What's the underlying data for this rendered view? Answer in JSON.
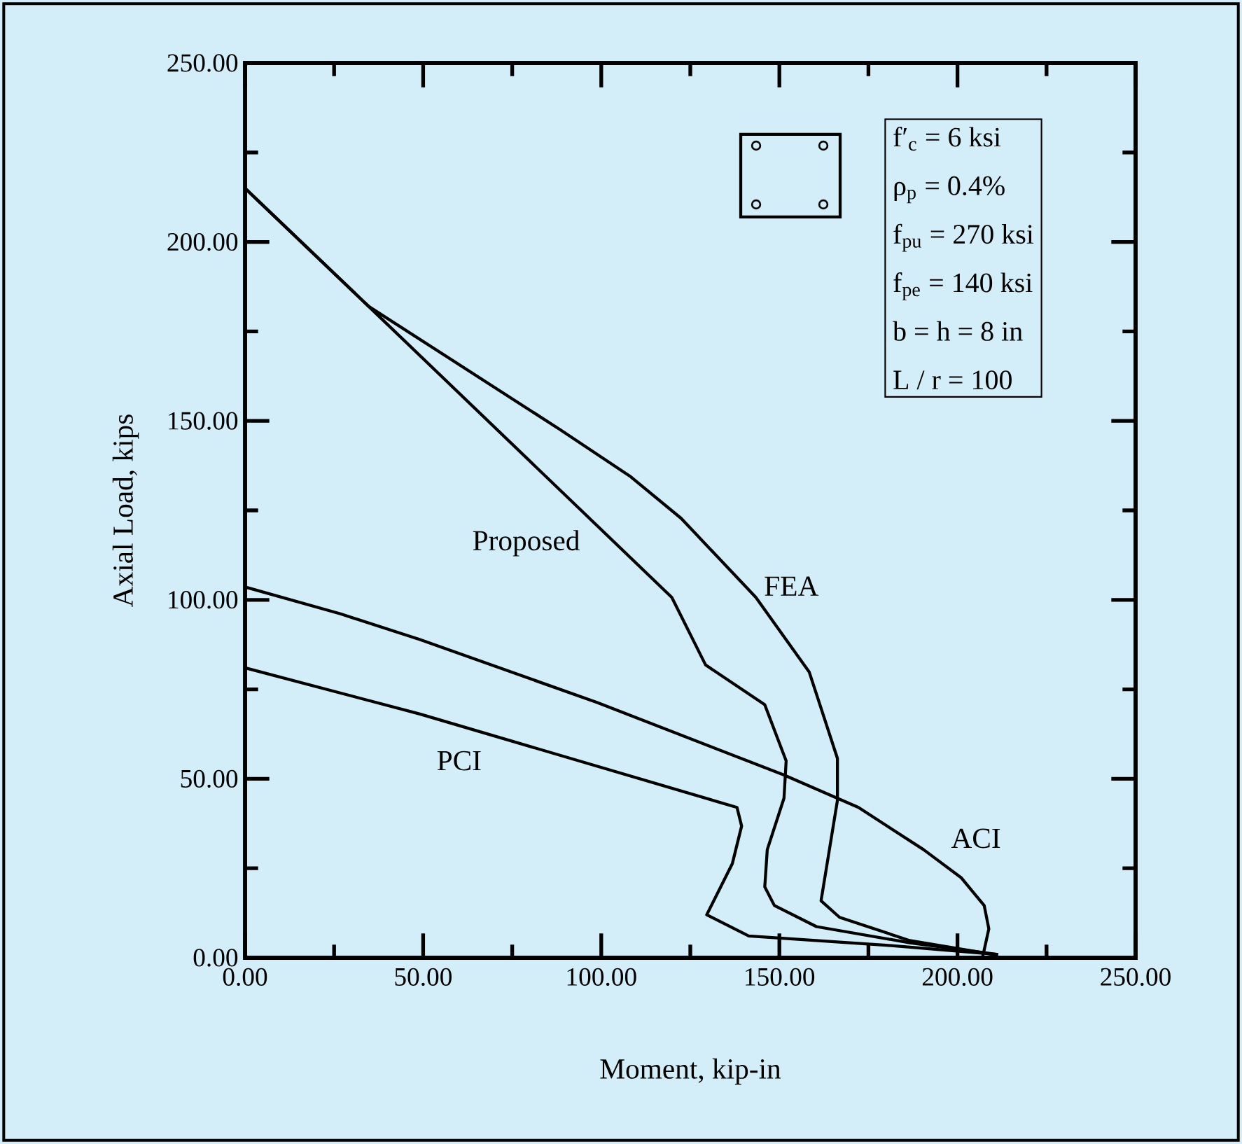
{
  "chart_data": {
    "type": "line",
    "xlabel": "Moment, kip-in",
    "ylabel": "Axial Load, kips",
    "xlim": [
      0,
      250
    ],
    "ylim": [
      0,
      250
    ],
    "xticks": [
      {
        "value": 0,
        "label": "0.00"
      },
      {
        "value": 50,
        "label": "50.00"
      },
      {
        "value": 100,
        "label": "100.00"
      },
      {
        "value": 150,
        "label": "150.00"
      },
      {
        "value": 200,
        "label": "200.00"
      },
      {
        "value": 250,
        "label": "250.00"
      }
    ],
    "yticks": [
      {
        "value": 0,
        "label": "0.00"
      },
      {
        "value": 50,
        "label": "50.00"
      },
      {
        "value": 100,
        "label": "100.00"
      },
      {
        "value": 150,
        "label": "150.00"
      },
      {
        "value": 200,
        "label": "200.00"
      },
      {
        "value": 250,
        "label": "250.00"
      }
    ],
    "grid": false,
    "marker": "none",
    "line_style": "solid",
    "series": [
      {
        "name": "Proposed",
        "color": "#000000",
        "x": [
          0,
          34.7,
          119.8,
          129.3,
          145.9,
          151.9,
          151.3,
          146.6,
          145.9,
          148.6,
          160.4,
          186.6,
          211.4
        ],
        "values": [
          215,
          182,
          100.7,
          81.8,
          70.7,
          55,
          44.6,
          30.2,
          19.8,
          14.6,
          8.7,
          4.2,
          0.9
        ]
      },
      {
        "name": "FEA",
        "color": "#000000",
        "x": [
          0,
          34.7,
          88.4,
          108,
          122.4,
          143.4,
          158.4,
          166.3,
          166.3,
          161.7,
          166.9,
          186.6,
          210.2
        ],
        "values": [
          215,
          182,
          147.6,
          134.6,
          122.8,
          100.7,
          79.8,
          55.7,
          44,
          15.9,
          11.3,
          4.8,
          0.9
        ]
      },
      {
        "name": "ACI",
        "color": "#000000",
        "x": [
          0,
          26.8,
          49.1,
          98.9,
          151.2,
          172.2,
          190.5,
          201,
          207.5,
          208.8,
          207.5,
          207
        ],
        "values": [
          103.6,
          96.1,
          88.9,
          71.3,
          51.1,
          42,
          30.2,
          22.4,
          14.6,
          8.1,
          2.2,
          0
        ]
      },
      {
        "name": "PCI",
        "color": "#000000",
        "x": [
          0,
          49.1,
          138.1,
          139.4,
          136.8,
          129.6,
          141.4,
          180,
          211.4
        ],
        "values": [
          81,
          68.1,
          42,
          36.8,
          26.3,
          12,
          6.1,
          3.5,
          0.9
        ]
      }
    ],
    "annotations": [
      "f′$_{c}$ = 6 ksi",
      "ρ$_{p}$ = 0.4%",
      "f$_{pu}$ = 270 ksi",
      "f$_{pe}$ = 140 ksi",
      "b = h = 8 in",
      "L / r = 100"
    ]
  }
}
